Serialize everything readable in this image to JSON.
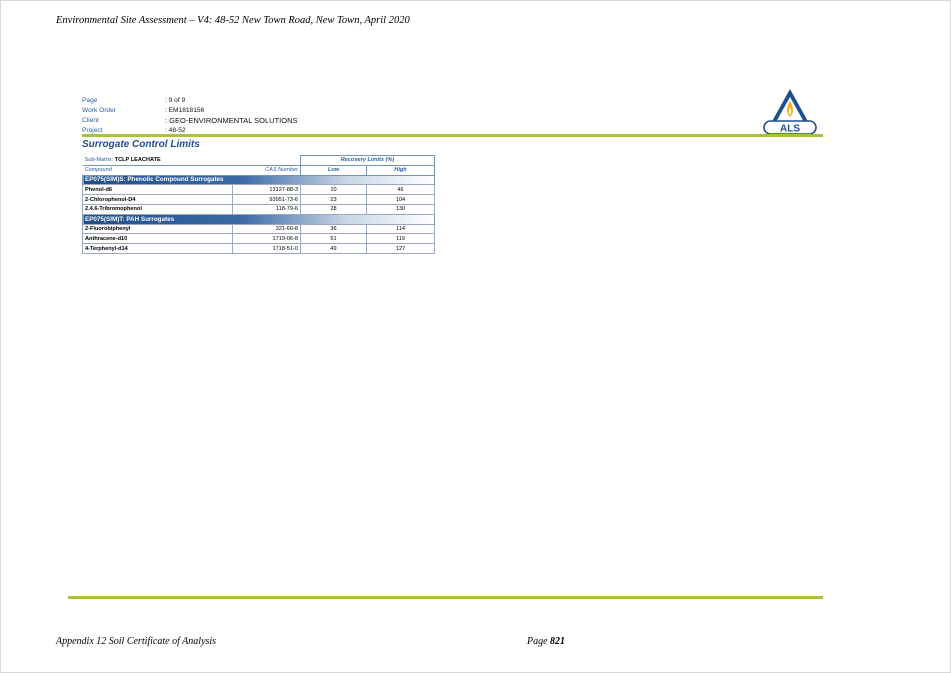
{
  "header": {
    "running_title": "Environmental Site Assessment – V4: 48-52 New Town Road, New Town, April 2020"
  },
  "meta": [
    {
      "label": "Page",
      "value": ": 9 of 9"
    },
    {
      "label": "Work Order",
      "value": ": EM1818156"
    },
    {
      "label": "Client",
      "value": ": GEO-ENVIRONMENTAL SOLUTIONS"
    },
    {
      "label": "Project",
      "value": ": 48-52"
    }
  ],
  "logo": {
    "text": "ALS",
    "color": "#1f4e8c",
    "flame_color": "#f2b21b"
  },
  "accent_color": "#a8c23c",
  "section_title": "Surrogate Control Limits",
  "table": {
    "sub_matrix_label": "Sub-Matrix:",
    "sub_matrix_value": "TCLP LEACHATE",
    "recovery_header": "Recovery Limits (%)",
    "col_compound": "Compound",
    "col_cas": "CAS Number",
    "col_low": "Low",
    "col_high": "High",
    "group1": "EP075(SIM)S: Phenolic Compound Surrogates",
    "group1_rows": [
      {
        "compound": "Phenol-d6",
        "cas": "13127-88-3",
        "low": "10",
        "high": "46"
      },
      {
        "compound": "2-Chlorophenol-D4",
        "cas": "93951-73-6",
        "low": "23",
        "high": "104"
      },
      {
        "compound": "2.4.6-Tribromophenol",
        "cas": "118-79-6",
        "low": "28",
        "high": "130"
      }
    ],
    "group2": "EP075(SIM)T: PAH Surrogates",
    "group2_rows": [
      {
        "compound": "2-Fluorobiphenyl",
        "cas": "321-60-8",
        "low": "36",
        "high": "114"
      },
      {
        "compound": "Anthracene-d10",
        "cas": "1719-06-8",
        "low": "51",
        "high": "119"
      },
      {
        "compound": "4-Terphenyl-d14",
        "cas": "1718-51-0",
        "low": "49",
        "high": "127"
      }
    ]
  },
  "footer": {
    "left": "Appendix 12 Soil Certificate of Analysis",
    "page_label": "Page",
    "page_number": "821"
  }
}
